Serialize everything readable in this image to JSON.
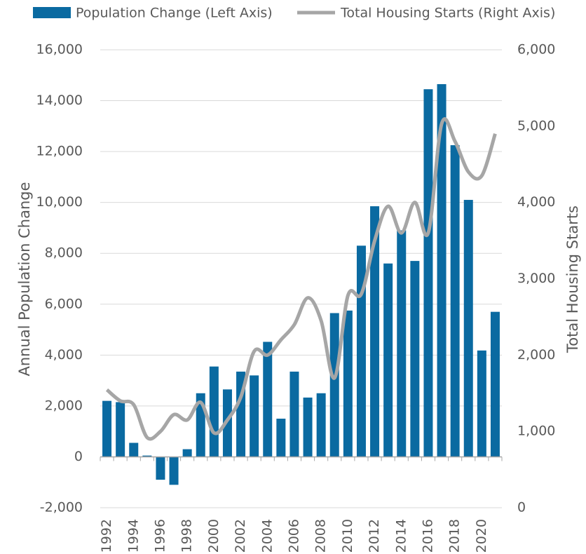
{
  "chart_data": {
    "type": "bar_line",
    "categories": [
      "1992",
      null,
      "1994",
      null,
      "1996",
      null,
      "1998",
      null,
      "2000",
      null,
      "2002",
      null,
      "2004",
      null,
      "2006",
      null,
      "2008",
      null,
      "2010",
      null,
      "2012",
      null,
      "2014",
      null,
      "2016",
      null,
      "2018",
      null,
      "2020",
      null
    ],
    "series": [
      {
        "name": "Population Change (Left Axis)",
        "type": "bar",
        "color": "#0a6aa1",
        "values": [
          2200,
          2150,
          550,
          50,
          -900,
          -1100,
          300,
          2500,
          3550,
          2650,
          3350,
          3200,
          4520,
          1500,
          3350,
          2330,
          2500,
          5650,
          5750,
          8300,
          9850,
          7600,
          8900,
          7700,
          14450,
          14650,
          12250,
          10100,
          4180,
          5700
        ]
      },
      {
        "name": "Total Housing Starts (Right Axis)",
        "type": "line",
        "axis": "y2",
        "color": "#a6a6a6",
        "values": [
          1545,
          1400,
          1350,
          920,
          1000,
          1220,
          1150,
          1380,
          980,
          1150,
          1450,
          2050,
          2000,
          2200,
          2400,
          2750,
          2450,
          1700,
          2780,
          2800,
          3500,
          3950,
          3600,
          4000,
          3600,
          5030,
          4800,
          4400,
          4350,
          4900
        ]
      }
    ],
    "ylabel": "Annual Population Change",
    "y2label": "Total Housing Starts",
    "ylim": [
      -2000,
      16000
    ],
    "yticks": [
      {
        "value": -2000,
        "label": "-2,000"
      },
      0,
      {
        "value": 2000,
        "label": "2,000"
      },
      {
        "value": 4000,
        "label": "4,000"
      },
      {
        "value": 6000,
        "label": "6,000"
      },
      {
        "value": 8000,
        "label": "8,000"
      },
      {
        "value": 10000,
        "label": "10,000"
      },
      {
        "value": 12000,
        "label": "12,000"
      },
      {
        "value": 14000,
        "label": "14,000"
      },
      {
        "value": 16000,
        "label": "16,000"
      }
    ],
    "y2lim": [
      0,
      6000
    ],
    "y2ticks": [
      0,
      {
        "value": 1000,
        "label": "1,000"
      },
      {
        "value": 2000,
        "label": "2,000"
      },
      {
        "value": 3000,
        "label": "3,000"
      },
      {
        "value": 4000,
        "label": "4,000"
      },
      {
        "value": 5000,
        "label": "5,000"
      },
      {
        "value": 6000,
        "label": "6,000"
      }
    ],
    "grid": true,
    "legend": "top"
  }
}
